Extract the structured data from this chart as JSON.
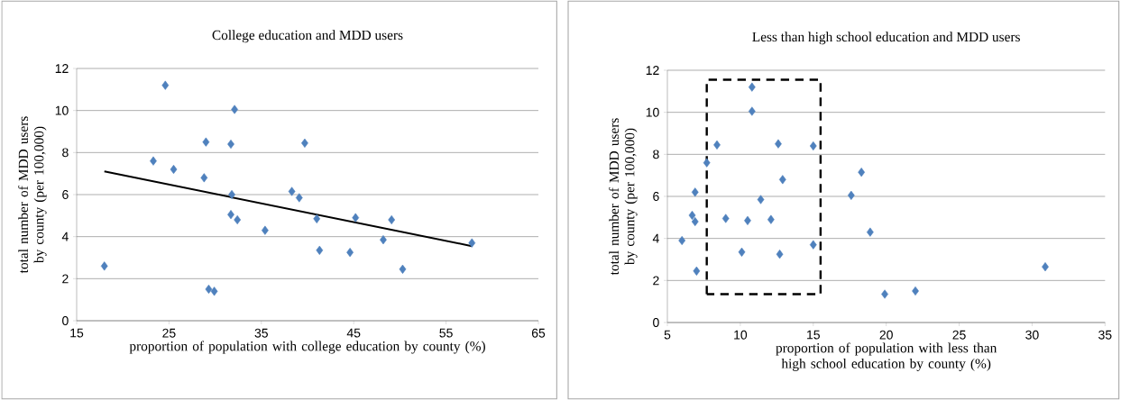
{
  "chart_data": [
    {
      "type": "scatter",
      "title": "College education and MDD users",
      "xlabel": "proportion of population with college education by county (%)",
      "ylabel": "total number of MDD users by county (per 100,000)",
      "xlim": [
        15,
        65
      ],
      "xticks": [
        15,
        25,
        35,
        45,
        55,
        65
      ],
      "ylim": [
        0,
        12
      ],
      "yticks": [
        0,
        2,
        4,
        6,
        8,
        10,
        12
      ],
      "grid": "y",
      "marker": "diamond",
      "series": [
        {
          "color": "#4f81bd",
          "x": [
            18,
            23.3,
            24.6,
            25.5,
            28.8,
            29,
            29.3,
            29.9,
            31.7,
            31.8,
            31.7,
            32.1,
            32.4,
            35.4,
            38.3,
            39.1,
            39.7,
            41.0,
            41.3,
            44.6,
            45.2,
            48.2,
            49.1,
            50.3,
            57.8
          ],
          "values": [
            2.6,
            7.6,
            11.2,
            7.2,
            6.8,
            8.5,
            1.5,
            1.4,
            8.4,
            6.0,
            5.05,
            10.05,
            4.8,
            4.3,
            6.15,
            5.85,
            8.45,
            4.85,
            3.35,
            3.25,
            4.9,
            3.85,
            4.8,
            2.45,
            3.7
          ]
        },
        {
          "type": "line",
          "marker": "none",
          "color": "#000000",
          "x": [
            18,
            57.8
          ],
          "values": [
            7.1,
            3.55
          ]
        }
      ]
    },
    {
      "type": "scatter",
      "title": "Less than high school education and MDD users",
      "xlabel": "proportion of population with less than high school education by county (%)",
      "ylabel": "total number of MDD users by county (per 100,000)",
      "xlim": [
        5,
        35
      ],
      "xticks": [
        5,
        10,
        15,
        20,
        25,
        30,
        35
      ],
      "ylim": [
        0,
        12
      ],
      "yticks": [
        0,
        2,
        4,
        6,
        8,
        10,
        12
      ],
      "grid": "y",
      "marker": "diamond",
      "series": [
        {
          "color": "#4f81bd",
          "x": [
            6.0,
            6.7,
            6.9,
            6.9,
            7.0,
            7.7,
            8.4,
            9.0,
            10.1,
            10.5,
            10.8,
            10.8,
            11.4,
            12.1,
            12.6,
            12.7,
            12.9,
            15.0,
            15.0,
            17.6,
            18.3,
            18.9,
            19.9,
            22.0,
            30.9
          ],
          "values": [
            3.9,
            5.1,
            6.2,
            4.8,
            2.45,
            7.6,
            8.45,
            4.95,
            3.35,
            4.85,
            11.2,
            10.05,
            5.85,
            4.9,
            8.5,
            3.25,
            6.8,
            8.4,
            3.7,
            6.05,
            7.15,
            4.3,
            1.35,
            1.5,
            2.65
          ]
        }
      ]
    }
  ]
}
